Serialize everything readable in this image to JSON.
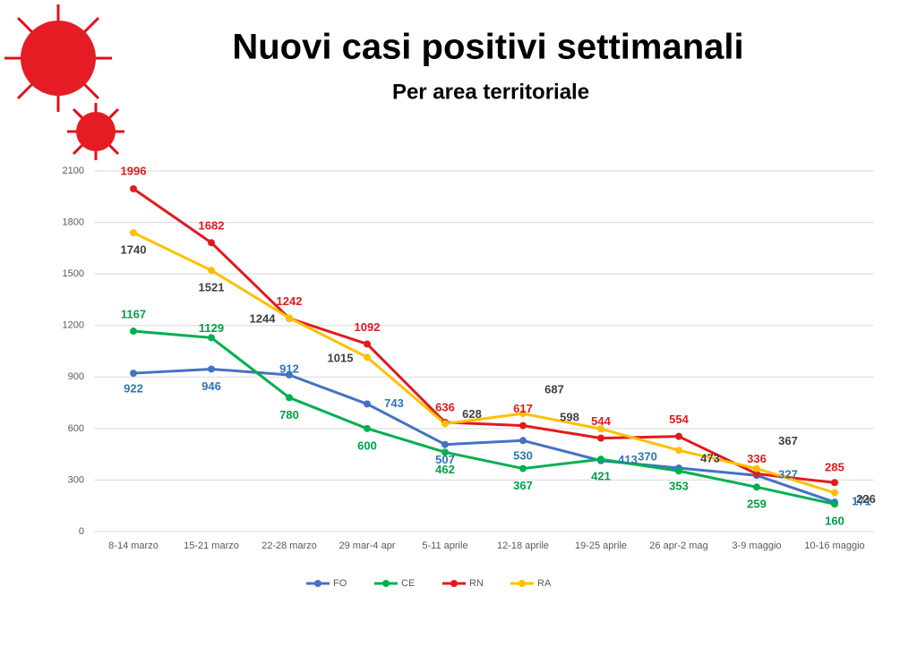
{
  "chart_data": {
    "type": "line",
    "title": "Nuovi casi positivi settimanali",
    "subtitle": "Per area territoriale",
    "categories": [
      "8-14 marzo",
      "15-21 marzo",
      "22-28 marzo",
      "29 mar-4 apr",
      "5-11 aprile",
      "12-18 aprile",
      "19-25 aprile",
      "26 apr-2 mag",
      "3-9 maggio",
      "10-16 maggio"
    ],
    "series": [
      {
        "name": "FO",
        "color": "#4472c4",
        "label_color": "#2e75b6",
        "values": [
          922,
          946,
          912,
          743,
          507,
          530,
          413,
          370,
          327,
          171
        ]
      },
      {
        "name": "CE",
        "color": "#00b050",
        "label_color": "#00a046",
        "values": [
          1167,
          1129,
          780,
          600,
          462,
          367,
          421,
          353,
          259,
          160
        ]
      },
      {
        "name": "RN",
        "color": "#e31a1c",
        "label_color": "#e31a1c",
        "values": [
          1996,
          1682,
          1242,
          1092,
          636,
          617,
          544,
          554,
          336,
          285
        ]
      },
      {
        "name": "RA",
        "color": "#ffc000",
        "label_color": "#404040",
        "values": [
          1740,
          1521,
          1244,
          1015,
          628,
          687,
          598,
          473,
          367,
          226
        ]
      }
    ],
    "ylim": [
      0,
      2100
    ],
    "yticks": [
      0,
      300,
      600,
      900,
      1200,
      1500,
      1800,
      2100
    ],
    "grid": true,
    "legend": "bottom"
  }
}
